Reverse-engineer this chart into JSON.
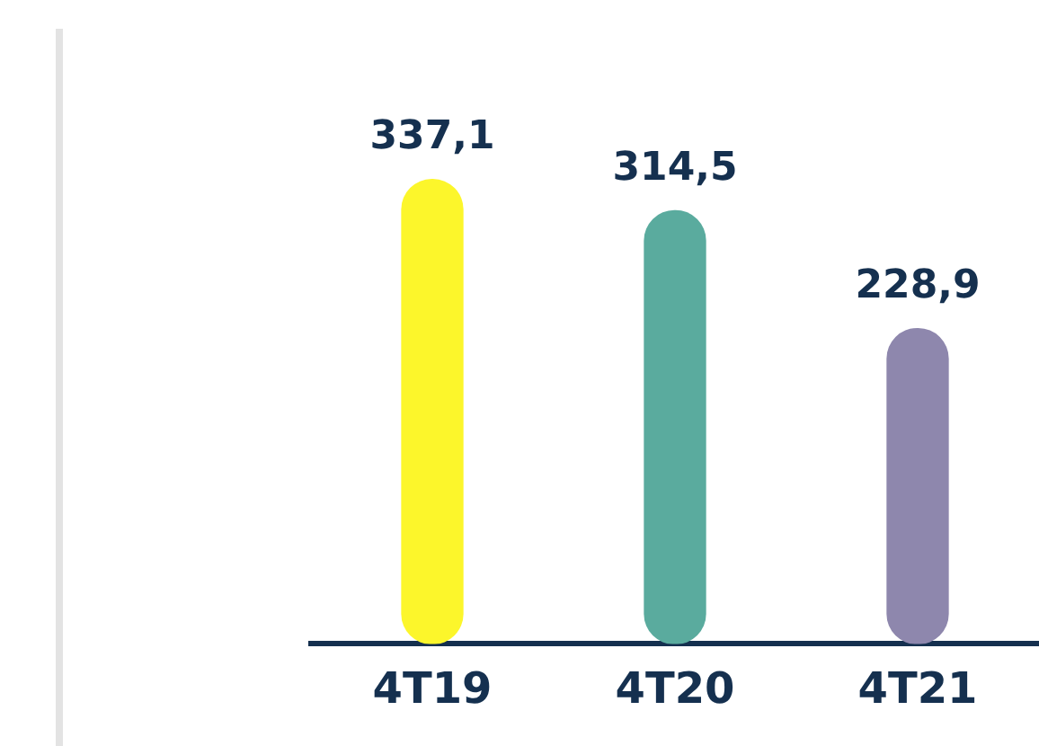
{
  "chart_data": {
    "type": "bar",
    "categories": [
      "4T19",
      "4T20",
      "4T21"
    ],
    "values": [
      337.1,
      314.5,
      228.9
    ],
    "colors": [
      "#fcf62b",
      "#5aab9e",
      "#8e87ad"
    ],
    "value_labels": [
      "337,1",
      "314,5",
      "228,9"
    ],
    "tick_labels": "x",
    "grid": false,
    "legend": false
  }
}
